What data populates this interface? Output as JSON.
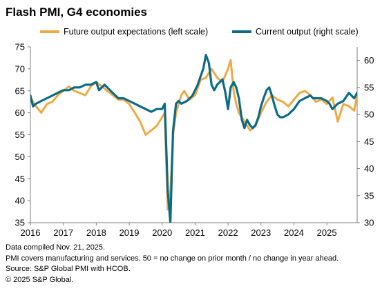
{
  "colors": {
    "future": "#F0A842",
    "current": "#0B6B85"
  },
  "chart_data": {
    "type": "line",
    "title": "Flash PMI, G4 economies",
    "dual_axis": true,
    "x_range": [
      2016.0,
      2025.92
    ],
    "x_tick_labels": [
      "2016",
      "2017",
      "2018",
      "2019",
      "2020",
      "2021",
      "2022",
      "2023",
      "2024",
      "2025"
    ],
    "left_axis": {
      "range": [
        35,
        75
      ],
      "ticks": [
        35,
        40,
        45,
        50,
        55,
        60,
        65,
        70,
        75
      ]
    },
    "right_axis": {
      "range": [
        30,
        62.5
      ],
      "ticks": [
        30,
        35,
        40,
        45,
        50,
        55,
        60
      ]
    },
    "grid": false,
    "legend_position": "top",
    "series": [
      {
        "name": "Future output expectations (left scale)",
        "axis": "left",
        "x": [
          2016.0,
          2016.17,
          2016.33,
          2016.5,
          2016.67,
          2016.83,
          2017.0,
          2017.17,
          2017.33,
          2017.5,
          2017.67,
          2017.83,
          2018.0,
          2018.17,
          2018.33,
          2018.5,
          2018.67,
          2018.83,
          2019.0,
          2019.17,
          2019.33,
          2019.5,
          2019.67,
          2019.83,
          2020.0,
          2020.08,
          2020.17,
          2020.25,
          2020.33,
          2020.42,
          2020.5,
          2020.58,
          2020.67,
          2020.83,
          2021.0,
          2021.17,
          2021.33,
          2021.5,
          2021.67,
          2021.83,
          2022.0,
          2022.08,
          2022.17,
          2022.25,
          2022.33,
          2022.5,
          2022.67,
          2022.83,
          2023.0,
          2023.17,
          2023.33,
          2023.5,
          2023.67,
          2023.83,
          2024.0,
          2024.17,
          2024.33,
          2024.5,
          2024.67,
          2024.83,
          2025.0,
          2025.17,
          2025.33,
          2025.5,
          2025.67,
          2025.83,
          2025.92
        ],
        "y": [
          63.5,
          61.5,
          60.0,
          62.0,
          62.5,
          64.0,
          65.0,
          66.0,
          65.0,
          64.5,
          64.0,
          66.0,
          67.0,
          66.0,
          65.0,
          64.0,
          63.0,
          63.0,
          62.0,
          60.0,
          58.0,
          55.0,
          56.0,
          57.0,
          59.0,
          60.0,
          38.0,
          42.0,
          55.0,
          60.0,
          62.0,
          64.0,
          65.0,
          63.0,
          64.0,
          67.5,
          68.0,
          70.0,
          68.0,
          67.0,
          70.0,
          72.0,
          65.0,
          62.0,
          60.0,
          58.0,
          56.0,
          57.0,
          60.0,
          62.5,
          64.0,
          63.0,
          62.5,
          61.5,
          63.0,
          64.5,
          65.0,
          64.0,
          62.5,
          63.0,
          62.0,
          63.5,
          58.0,
          62.0,
          61.5,
          60.5,
          64.0
        ]
      },
      {
        "name": "Current output (right scale)",
        "axis": "right",
        "x": [
          2016.0,
          2016.08,
          2016.17,
          2016.33,
          2016.5,
          2016.67,
          2016.83,
          2017.0,
          2017.17,
          2017.33,
          2017.5,
          2017.67,
          2017.83,
          2018.0,
          2018.08,
          2018.25,
          2018.5,
          2018.67,
          2018.83,
          2019.0,
          2019.17,
          2019.33,
          2019.5,
          2019.67,
          2019.83,
          2020.0,
          2020.08,
          2020.17,
          2020.25,
          2020.33,
          2020.42,
          2020.5,
          2020.58,
          2020.75,
          2020.92,
          2021.08,
          2021.25,
          2021.33,
          2021.42,
          2021.5,
          2021.58,
          2021.67,
          2021.83,
          2021.92,
          2022.0,
          2022.08,
          2022.17,
          2022.25,
          2022.33,
          2022.42,
          2022.5,
          2022.58,
          2022.67,
          2022.75,
          2022.83,
          2022.92,
          2023.0,
          2023.08,
          2023.17,
          2023.25,
          2023.33,
          2023.42,
          2023.5,
          2023.58,
          2023.67,
          2023.83,
          2024.0,
          2024.17,
          2024.33,
          2024.5,
          2024.58,
          2024.67,
          2024.83,
          2025.0,
          2025.08,
          2025.17,
          2025.33,
          2025.5,
          2025.67,
          2025.83,
          2025.92
        ],
        "y": [
          53.5,
          51.5,
          52.0,
          52.5,
          53.0,
          53.5,
          54.0,
          54.5,
          54.5,
          55.0,
          55.0,
          55.5,
          55.5,
          56.0,
          54.5,
          55.5,
          54.0,
          53.0,
          53.0,
          52.5,
          52.0,
          51.5,
          51.0,
          50.5,
          51.0,
          51.0,
          52.0,
          36.0,
          30.0,
          47.0,
          52.0,
          52.5,
          52.0,
          52.5,
          53.5,
          55.5,
          58.5,
          61.0,
          59.5,
          55.5,
          54.5,
          55.5,
          56.5,
          54.0,
          51.0,
          55.0,
          56.0,
          55.0,
          53.0,
          49.0,
          47.5,
          49.0,
          48.0,
          47.5,
          48.0,
          49.5,
          51.5,
          53.0,
          54.5,
          55.0,
          53.5,
          51.5,
          50.0,
          49.5,
          49.5,
          50.0,
          51.0,
          52.5,
          53.0,
          53.5,
          53.0,
          53.0,
          53.0,
          52.5,
          52.0,
          51.0,
          52.0,
          52.5,
          54.0,
          53.0,
          54.0
        ]
      }
    ]
  },
  "footer": {
    "line1": "Data compiled Nov. 21, 2025.",
    "line2": "PMI covers manufacturing and services. 50 = no change on prior month / no change in year ahead.",
    "line3": "Source: S&P Global PMI with HCOB.",
    "line4": "© 2025 S&P Global."
  }
}
